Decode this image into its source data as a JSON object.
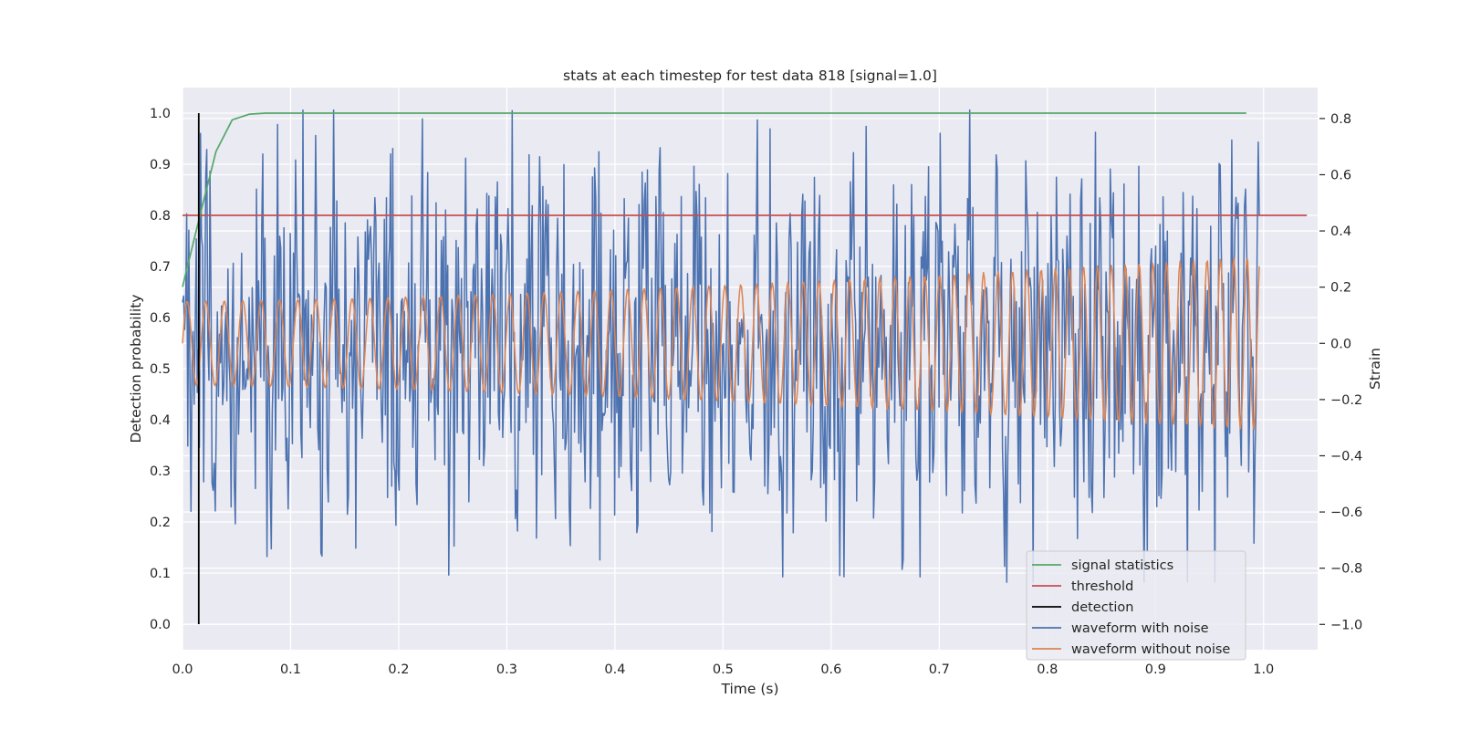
{
  "chart_data": {
    "type": "line",
    "title": "stats at each timestep for test data 818 [signal=1.0]",
    "xlabel": "Time (s)",
    "ylabel_left": "Detection probability",
    "ylabel_right": "Strain",
    "xlim": [
      0.0,
      1.05
    ],
    "ylim_left": [
      -0.05,
      1.05
    ],
    "ylim_right": [
      -1.09,
      0.91
    ],
    "x_ticks": [
      0.0,
      0.1,
      0.2,
      0.3,
      0.4,
      0.5,
      0.6,
      0.7,
      0.8,
      0.9,
      1.0
    ],
    "x_tick_labels": [
      "0.0",
      "0.1",
      "0.2",
      "0.3",
      "0.4",
      "0.5",
      "0.6",
      "0.7",
      "0.8",
      "0.9",
      "1.0"
    ],
    "y_left_ticks": [
      0.0,
      0.1,
      0.2,
      0.3,
      0.4,
      0.5,
      0.6,
      0.7,
      0.8,
      0.9,
      1.0
    ],
    "y_left_tick_labels": [
      "0.0",
      "0.1",
      "0.2",
      "0.3",
      "0.4",
      "0.5",
      "0.6",
      "0.7",
      "0.8",
      "0.9",
      "1.0"
    ],
    "y_right_ticks": [
      -1.0,
      -0.8,
      -0.6,
      -0.4,
      -0.2,
      0.0,
      0.2,
      0.4,
      0.6,
      0.8
    ],
    "y_right_tick_labels": [
      "−1.0",
      "−0.8",
      "−0.6",
      "−0.4",
      "−0.2",
      "0.0",
      "0.2",
      "0.4",
      "0.6",
      "0.8"
    ],
    "grid": true,
    "legend_position": "lower-right",
    "series": [
      {
        "name": "signal statistics",
        "axis": "left",
        "color": "#55a868",
        "x": [
          0.0,
          0.015,
          0.031,
          0.046,
          0.062,
          0.077,
          0.1,
          0.2,
          0.3,
          0.4,
          0.5,
          0.6,
          0.7,
          0.8,
          0.9,
          0.984
        ],
        "y": [
          0.66,
          0.79,
          0.925,
          0.987,
          0.998,
          1.0,
          1.0,
          1.0,
          1.0,
          1.0,
          1.0,
          1.0,
          1.0,
          1.0,
          1.0,
          1.0
        ]
      },
      {
        "name": "threshold",
        "axis": "left",
        "color": "#c44e52",
        "x": [
          0.0,
          1.04
        ],
        "y": [
          0.8,
          0.8
        ]
      },
      {
        "name": "detection",
        "axis": "left",
        "color": "#000000",
        "x": [
          0.015,
          0.015
        ],
        "y": [
          0.0,
          1.0
        ]
      },
      {
        "name": "waveform with noise",
        "axis": "right",
        "color": "#4c72b0",
        "x_start": 0.0,
        "x_end": 0.996,
        "noise_amplitude": 0.32,
        "peak_max": 0.83,
        "peak_min": -0.85
      },
      {
        "name": "waveform without noise",
        "axis": "right",
        "color": "#dd8452",
        "x_start": 0.0,
        "x_end": 0.996,
        "amplitude_start": 0.15,
        "amplitude_end": 0.31,
        "freq_start_hz": 58,
        "freq_end_hz": 82
      }
    ]
  }
}
